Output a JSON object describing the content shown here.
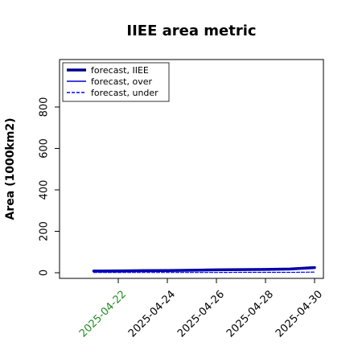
{
  "chart_data": {
    "type": "line",
    "title": "IIEE area metric",
    "ylabel": "Area (1000km2)",
    "xlabel": "",
    "x": [
      "2025-04-21",
      "2025-04-22",
      "2025-04-23",
      "2025-04-24",
      "2025-04-25",
      "2025-04-26",
      "2025-04-27",
      "2025-04-28",
      "2025-04-29",
      "2025-04-30"
    ],
    "xlim": [
      "2025-04-20",
      "2025-04-30"
    ],
    "ylim": [
      -25,
      1065
    ],
    "yticks": [
      "0",
      "200",
      "400",
      "600",
      "800"
    ],
    "xticks": [
      {
        "label": "2025-04-22",
        "color": "#228b22"
      },
      {
        "label": "2025-04-24",
        "color": "#000000"
      },
      {
        "label": "2025-04-26",
        "color": "#000000"
      },
      {
        "label": "2025-04-28",
        "color": "#000000"
      },
      {
        "label": "2025-04-30",
        "color": "#000000"
      }
    ],
    "legend_position": "top-left",
    "grid": false,
    "series": [
      {
        "name": "forecast, IIEE",
        "color": "#00008b",
        "style": "thick-solid",
        "values": [
          8,
          9,
          10,
          11,
          12,
          14,
          15,
          16,
          18,
          25
        ]
      },
      {
        "name": "forecast, over",
        "color": "#0000cd",
        "style": "solid",
        "values": [
          7,
          8,
          9,
          10,
          11,
          13,
          14,
          15,
          16,
          22
        ]
      },
      {
        "name": "forecast, under",
        "color": "#0000ff",
        "style": "dashed",
        "values": [
          1,
          1,
          1,
          1,
          1,
          1,
          2,
          2,
          2,
          3
        ]
      }
    ]
  }
}
